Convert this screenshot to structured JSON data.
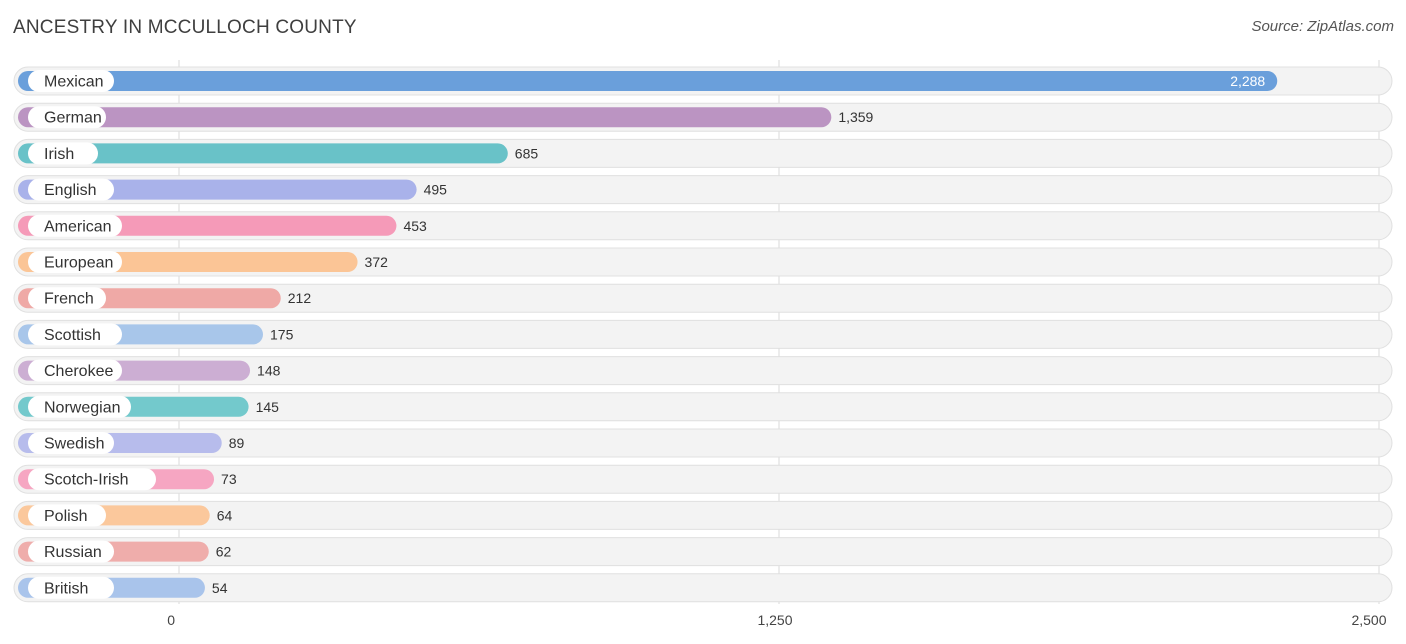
{
  "header": {
    "title": "ANCESTRY IN MCCULLOCH COUNTY",
    "source": "Source: ZipAtlas.com"
  },
  "chart_data": {
    "type": "bar",
    "orientation": "horizontal",
    "title": "ANCESTRY IN MCCULLOCH COUNTY",
    "xlabel": "",
    "ylabel": "",
    "xlim": [
      0,
      2500
    ],
    "grid": true,
    "categories": [
      "Mexican",
      "German",
      "Irish",
      "English",
      "American",
      "European",
      "French",
      "Scottish",
      "Cherokee",
      "Norwegian",
      "Swedish",
      "Scotch-Irish",
      "Polish",
      "Russian",
      "British"
    ],
    "values": [
      2288,
      1359,
      685,
      495,
      453,
      372,
      212,
      175,
      148,
      145,
      89,
      73,
      64,
      62,
      54
    ],
    "value_labels": [
      "2,288",
      "1,359",
      "685",
      "495",
      "453",
      "372",
      "212",
      "175",
      "148",
      "145",
      "89",
      "73",
      "64",
      "62",
      "54"
    ],
    "colors": [
      "#6a9fdb",
      "#bb94c2",
      "#69c2c8",
      "#a9b2ea",
      "#f59ab8",
      "#fbc596",
      "#efa9a6",
      "#a8c6ea",
      "#ccaed3",
      "#73c9cc",
      "#b7bcec",
      "#f6a6c2",
      "#fbc89c",
      "#efadab",
      "#a9c4eb"
    ],
    "x_ticks": [
      0,
      1250,
      2500
    ],
    "x_tick_labels": [
      "0",
      "1,250",
      "2,500"
    ]
  }
}
